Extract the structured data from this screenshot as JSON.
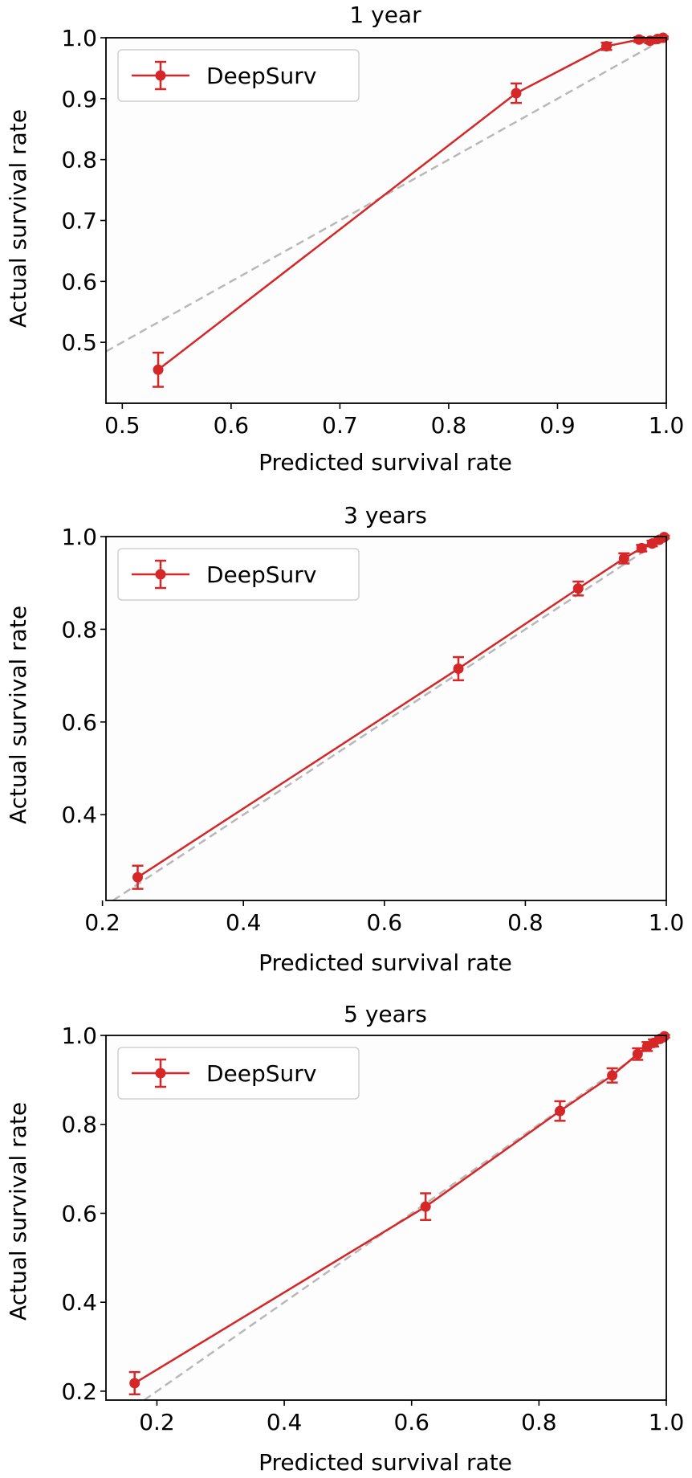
{
  "chart_data": [
    {
      "type": "line",
      "title": "1 year",
      "xlabel": "Predicted survival rate",
      "ylabel": "Actual survival rate",
      "xlim": [
        0.485,
        1.0
      ],
      "ylim": [
        0.4,
        1.0
      ],
      "xticks": [
        "0.5",
        "0.6",
        "0.7",
        "0.8",
        "0.9",
        "1.0"
      ],
      "yticks": [
        "0.5",
        "0.6",
        "0.7",
        "0.8",
        "0.9",
        "1.0"
      ],
      "grid": false,
      "legend_position": "top-left",
      "reference_line": "diagonal y = x (dashed gray)",
      "series": [
        {
          "name": "DeepSurv",
          "color": "#d62728",
          "points": [
            {
              "x": 0.533,
              "y": 0.455,
              "err": 0.028
            },
            {
              "x": 0.862,
              "y": 0.909,
              "err": 0.016
            },
            {
              "x": 0.945,
              "y": 0.986,
              "err": 0.006
            },
            {
              "x": 0.975,
              "y": 0.997,
              "err": 0.004
            },
            {
              "x": 0.985,
              "y": 0.995,
              "err": 0.004
            },
            {
              "x": 0.992,
              "y": 0.998,
              "err": 0.003
            },
            {
              "x": 0.997,
              "y": 1.0,
              "err": 0.002
            }
          ]
        }
      ]
    },
    {
      "type": "line",
      "title": "3 years",
      "xlabel": "Predicted survival rate",
      "ylabel": "Actual survival rate",
      "xlim": [
        0.205,
        1.0
      ],
      "ylim": [
        0.215,
        1.0
      ],
      "xticks": [
        "0.2",
        "0.4",
        "0.6",
        "0.8",
        "1.0"
      ],
      "yticks": [
        "0.4",
        "0.6",
        "0.8",
        "1.0"
      ],
      "grid": false,
      "legend_position": "top-left",
      "reference_line": "diagonal y = x (dashed gray)",
      "series": [
        {
          "name": "DeepSurv",
          "color": "#d62728",
          "points": [
            {
              "x": 0.25,
              "y": 0.265,
              "err": 0.025
            },
            {
              "x": 0.705,
              "y": 0.715,
              "err": 0.025
            },
            {
              "x": 0.875,
              "y": 0.888,
              "err": 0.015
            },
            {
              "x": 0.94,
              "y": 0.953,
              "err": 0.011
            },
            {
              "x": 0.965,
              "y": 0.975,
              "err": 0.007
            },
            {
              "x": 0.98,
              "y": 0.985,
              "err": 0.006
            },
            {
              "x": 0.99,
              "y": 0.993,
              "err": 0.004
            },
            {
              "x": 0.997,
              "y": 0.999,
              "err": 0.003
            }
          ]
        }
      ]
    },
    {
      "type": "line",
      "title": "5 years",
      "xlabel": "Predicted survival rate",
      "ylabel": "Actual survival rate",
      "xlim": [
        0.12,
        1.0
      ],
      "ylim": [
        0.18,
        1.0
      ],
      "xticks": [
        "0.2",
        "0.4",
        "0.6",
        "0.8",
        "1.0"
      ],
      "yticks": [
        "0.2",
        "0.4",
        "0.6",
        "0.8",
        "1.0"
      ],
      "grid": false,
      "legend_position": "top-left",
      "reference_line": "diagonal y = x (dashed gray)",
      "series": [
        {
          "name": "DeepSurv",
          "color": "#d62728",
          "points": [
            {
              "x": 0.165,
              "y": 0.218,
              "err": 0.025
            },
            {
              "x": 0.622,
              "y": 0.615,
              "err": 0.03
            },
            {
              "x": 0.833,
              "y": 0.83,
              "err": 0.022
            },
            {
              "x": 0.915,
              "y": 0.91,
              "err": 0.016
            },
            {
              "x": 0.955,
              "y": 0.958,
              "err": 0.013
            },
            {
              "x": 0.97,
              "y": 0.975,
              "err": 0.01
            },
            {
              "x": 0.98,
              "y": 0.983,
              "err": 0.008
            },
            {
              "x": 0.99,
              "y": 0.992,
              "err": 0.005
            },
            {
              "x": 0.997,
              "y": 0.998,
              "err": 0.003
            }
          ]
        }
      ]
    }
  ]
}
